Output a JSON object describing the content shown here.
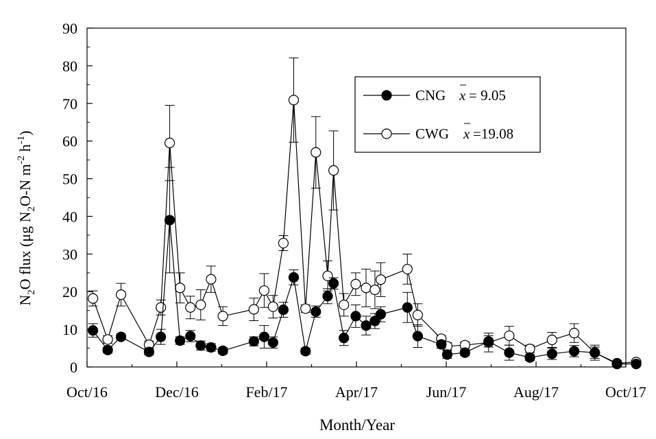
{
  "chart_data": {
    "type": "scatter",
    "xlabel": "Month/Year",
    "ylabel": "N2O flux (μg N2O-N m-2 h-1)",
    "ylim": [
      0,
      90
    ],
    "yticks": [
      0,
      10,
      20,
      30,
      40,
      50,
      60,
      70,
      80,
      90
    ],
    "x_tick_labels": [
      "Oct/16",
      "Dec/16",
      "Feb/17",
      "Apr/17",
      "Jun/17",
      "Aug/17",
      "Oct/17"
    ],
    "legend_position": "top-right",
    "series": [
      {
        "name": "CNG",
        "mean_label": "= 9.05",
        "marker": "filled-circle",
        "color": "#000000",
        "points": [
          {
            "x": "2016-10-05",
            "y": 9.7,
            "err": 1.8
          },
          {
            "x": "2016-10-15",
            "y": 4.5,
            "err": 0.8
          },
          {
            "x": "2016-10-24",
            "y": 8.0,
            "err": 0.8
          },
          {
            "x": "2016-11-12",
            "y": 4.0,
            "err": 0.8
          },
          {
            "x": "2016-11-20",
            "y": 8.0,
            "err": 2.0
          },
          {
            "x": "2016-11-26",
            "y": 39.0,
            "err": 14.0
          },
          {
            "x": "2016-12-03",
            "y": 7.0,
            "err": 1.0
          },
          {
            "x": "2016-12-10",
            "y": 8.2,
            "err": 1.5
          },
          {
            "x": "2016-12-17",
            "y": 5.7,
            "err": 1.2
          },
          {
            "x": "2016-12-24",
            "y": 5.2,
            "err": 1.0
          },
          {
            "x": "2017-01-01",
            "y": 4.3,
            "err": 0.8
          },
          {
            "x": "2017-01-22",
            "y": 6.8,
            "err": 1.2
          },
          {
            "x": "2017-01-29",
            "y": 8.0,
            "err": 3.0
          },
          {
            "x": "2017-02-04",
            "y": 6.5,
            "err": 1.5
          },
          {
            "x": "2017-02-11",
            "y": 15.2,
            "err": 2.0
          },
          {
            "x": "2017-02-18",
            "y": 23.8,
            "err": 2.0
          },
          {
            "x": "2017-02-26",
            "y": 4.2,
            "err": 0.8
          },
          {
            "x": "2017-03-05",
            "y": 14.7,
            "err": 1.5
          },
          {
            "x": "2017-03-13",
            "y": 18.8,
            "err": 2.0
          },
          {
            "x": "2017-03-17",
            "y": 22.2,
            "err": 1.5
          },
          {
            "x": "2017-03-24",
            "y": 7.7,
            "err": 2.0
          },
          {
            "x": "2017-04-01",
            "y": 13.5,
            "err": 3.0
          },
          {
            "x": "2017-04-08",
            "y": 11.0,
            "err": 2.5
          },
          {
            "x": "2017-04-14",
            "y": 12.2,
            "err": 2.0
          },
          {
            "x": "2017-04-18",
            "y": 14.0,
            "err": 2.0
          },
          {
            "x": "2017-05-06",
            "y": 15.8,
            "err": 4.0
          },
          {
            "x": "2017-05-13",
            "y": 8.2,
            "err": 3.0
          },
          {
            "x": "2017-05-29",
            "y": 6.0,
            "err": 1.0
          },
          {
            "x": "2017-06-02",
            "y": 3.3,
            "err": 1.0
          },
          {
            "x": "2017-06-14",
            "y": 3.8,
            "err": 0.8
          },
          {
            "x": "2017-06-30",
            "y": 6.8,
            "err": 1.5
          },
          {
            "x": "2017-07-14",
            "y": 3.8,
            "err": 2.0
          },
          {
            "x": "2017-07-28",
            "y": 2.5,
            "err": 0.8
          },
          {
            "x": "2017-08-12",
            "y": 3.5,
            "err": 1.5
          },
          {
            "x": "2017-08-27",
            "y": 4.2,
            "err": 1.5
          },
          {
            "x": "2017-09-10",
            "y": 3.8,
            "err": 1.5
          },
          {
            "x": "2017-09-25",
            "y": 0.8,
            "err": 0.4
          },
          {
            "x": "2017-10-08",
            "y": 0.8,
            "err": 0.4
          }
        ]
      },
      {
        "name": "CWG",
        "mean_label": "=19.08",
        "marker": "open-circle",
        "color": "#000000",
        "points": [
          {
            "x": "2016-10-05",
            "y": 18.2,
            "err": 2.0
          },
          {
            "x": "2016-10-15",
            "y": 7.3,
            "err": 1.0
          },
          {
            "x": "2016-10-24",
            "y": 19.2,
            "err": 3.0
          },
          {
            "x": "2016-11-12",
            "y": 5.9,
            "err": 1.0
          },
          {
            "x": "2016-11-20",
            "y": 15.8,
            "err": 2.0
          },
          {
            "x": "2016-11-26",
            "y": 59.5,
            "err": 10.0
          },
          {
            "x": "2016-12-03",
            "y": 21.0,
            "err": 4.0
          },
          {
            "x": "2016-12-10",
            "y": 15.8,
            "err": 3.0
          },
          {
            "x": "2016-12-17",
            "y": 16.5,
            "err": 4.0
          },
          {
            "x": "2016-12-24",
            "y": 23.3,
            "err": 3.5
          },
          {
            "x": "2017-01-01",
            "y": 13.5,
            "err": 2.5
          },
          {
            "x": "2017-01-22",
            "y": 15.3,
            "err": 3.0
          },
          {
            "x": "2017-01-29",
            "y": 20.3,
            "err": 4.5
          },
          {
            "x": "2017-02-04",
            "y": 16.0,
            "err": 3.0
          },
          {
            "x": "2017-02-11",
            "y": 32.9,
            "err": 2.0
          },
          {
            "x": "2017-02-18",
            "y": 70.9,
            "err": 11.2
          },
          {
            "x": "2017-02-26",
            "y": 15.5,
            "err": 1.0
          },
          {
            "x": "2017-03-05",
            "y": 57.0,
            "err": 9.5
          },
          {
            "x": "2017-03-13",
            "y": 24.2,
            "err": 4.0
          },
          {
            "x": "2017-03-17",
            "y": 52.2,
            "err": 10.5
          },
          {
            "x": "2017-03-24",
            "y": 16.5,
            "err": 3.0
          },
          {
            "x": "2017-04-01",
            "y": 22.0,
            "err": 3.0
          },
          {
            "x": "2017-04-08",
            "y": 21.0,
            "err": 5.0
          },
          {
            "x": "2017-04-14",
            "y": 20.5,
            "err": 5.0
          },
          {
            "x": "2017-04-18",
            "y": 23.2,
            "err": 4.5
          },
          {
            "x": "2017-05-06",
            "y": 26.0,
            "err": 4.0
          },
          {
            "x": "2017-05-13",
            "y": 13.8,
            "err": 3.0
          },
          {
            "x": "2017-05-29",
            "y": 7.5,
            "err": 0.8
          },
          {
            "x": "2017-06-02",
            "y": 5.5,
            "err": 1.0
          },
          {
            "x": "2017-06-14",
            "y": 5.8,
            "err": 0.8
          },
          {
            "x": "2017-06-30",
            "y": 6.5,
            "err": 2.5
          },
          {
            "x": "2017-07-14",
            "y": 8.3,
            "err": 2.5
          },
          {
            "x": "2017-07-28",
            "y": 4.8,
            "err": 1.0
          },
          {
            "x": "2017-08-12",
            "y": 7.2,
            "err": 2.0
          },
          {
            "x": "2017-08-27",
            "y": 9.0,
            "err": 2.5
          },
          {
            "x": "2017-09-10",
            "y": 3.8,
            "err": 2.0
          },
          {
            "x": "2017-09-25",
            "y": 1.0,
            "err": 0.4
          },
          {
            "x": "2017-10-08",
            "y": 1.3,
            "err": 0.4
          }
        ]
      }
    ]
  }
}
